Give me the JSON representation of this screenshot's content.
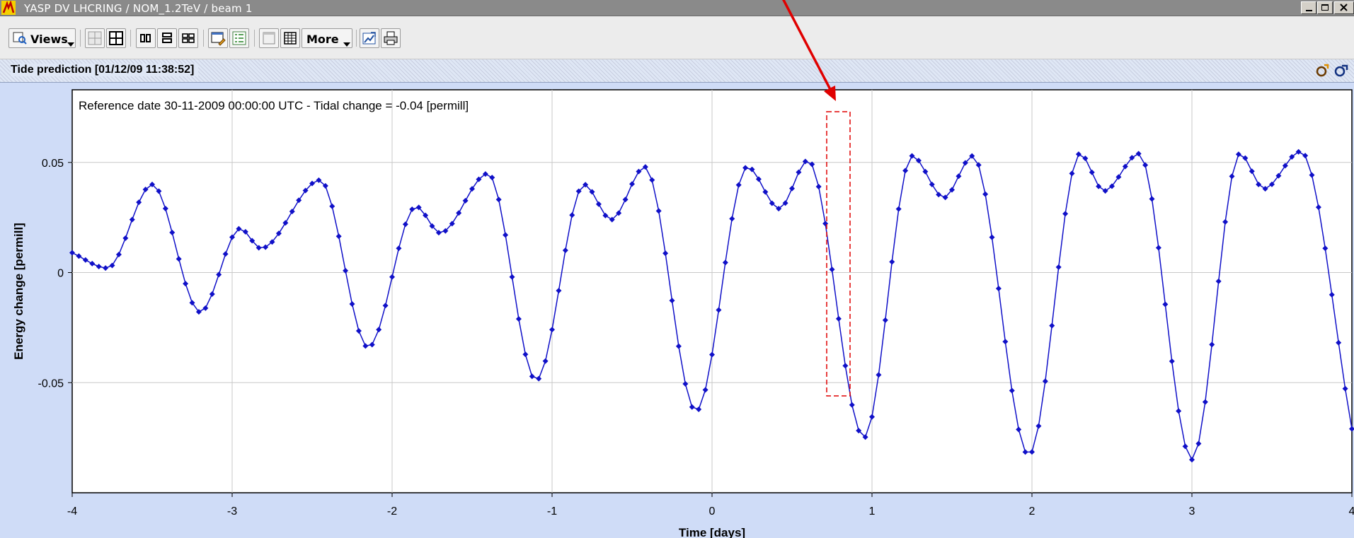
{
  "window": {
    "title": "YASP DV LHCRING / NOM_1.2TeV / beam 1"
  },
  "toolbar": {
    "views_label": "Views",
    "more_label": "More"
  },
  "panel": {
    "title": "Tide prediction  [01/12/09 11:38:52]"
  },
  "chart_data": {
    "type": "line",
    "annotation": "Reference date 30-11-2009 00:00:00 UTC - Tidal change =   -0.04 [permill]",
    "xlabel": "Time [days]",
    "ylabel": "Energy change [permill]",
    "xlim": [
      -4,
      4
    ],
    "ylim": [
      -0.1,
      0.083
    ],
    "x_ticks": [
      -4,
      -3,
      -2,
      -1,
      0,
      1,
      2,
      3,
      4
    ],
    "x_tick_labels": [
      "-4",
      "-3",
      "-2",
      "-1",
      "0",
      "1",
      "2",
      "3",
      "4"
    ],
    "y_ticks": [
      -0.05,
      0,
      0.05
    ],
    "y_tick_labels": [
      "-0.05",
      "0",
      "0.05"
    ],
    "grid": true,
    "marker": "diamond",
    "color": "#1010c8",
    "series": [
      {
        "points": [
          [
            -4.0,
            0.009
          ],
          [
            -3.78,
            0.002
          ],
          [
            -3.5,
            0.04
          ],
          [
            -3.2,
            -0.018
          ],
          [
            -2.95,
            0.02
          ],
          [
            -2.82,
            0.011
          ],
          [
            -2.45,
            0.042
          ],
          [
            -2.15,
            -0.034
          ],
          [
            -1.85,
            0.03
          ],
          [
            -1.7,
            0.018
          ],
          [
            -1.4,
            0.045
          ],
          [
            -1.1,
            -0.049
          ],
          [
            -0.8,
            0.04
          ],
          [
            -0.63,
            0.024
          ],
          [
            -0.42,
            0.048
          ],
          [
            -0.1,
            -0.063
          ],
          [
            0.22,
            0.048
          ],
          [
            0.42,
            0.029
          ],
          [
            0.6,
            0.051
          ],
          [
            0.95,
            -0.075
          ],
          [
            1.25,
            0.053
          ],
          [
            1.45,
            0.034
          ],
          [
            1.63,
            0.053
          ],
          [
            1.98,
            -0.083
          ],
          [
            2.3,
            0.054
          ],
          [
            2.45,
            0.037
          ],
          [
            2.67,
            0.054
          ],
          [
            3.0,
            -0.085
          ],
          [
            3.3,
            0.054
          ],
          [
            3.45,
            0.038
          ],
          [
            3.68,
            0.055
          ],
          [
            4.0,
            -0.071
          ]
        ]
      }
    ]
  },
  "overlay": {
    "arrow_color": "#e00000",
    "highlight_color": "#e00000"
  }
}
